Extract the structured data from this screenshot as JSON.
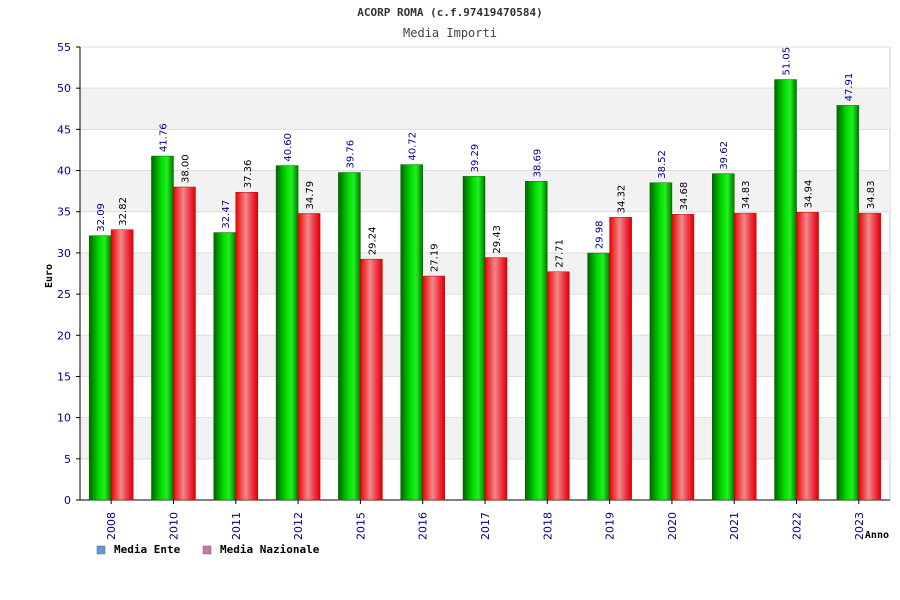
{
  "chart_data": {
    "type": "bar",
    "title": "ACORP ROMA (c.f.97419470584)",
    "subtitle": "Media Importi",
    "ylabel": "Euro",
    "xlabel": "Anno",
    "ylim": [
      0,
      55
    ],
    "yticks": [
      0,
      5,
      10,
      15,
      20,
      25,
      30,
      35,
      40,
      45,
      50,
      55
    ],
    "grid": true,
    "legend_position": "bottom-left",
    "categories": [
      "2008",
      "2010",
      "2011",
      "2012",
      "2015",
      "2016",
      "2017",
      "2018",
      "2019",
      "2020",
      "2021",
      "2022",
      "2023"
    ],
    "series": [
      {
        "name": "Media Ente",
        "color": "#00cc00",
        "legend_color": "#5b9bd5",
        "values": [
          32.09,
          41.76,
          32.47,
          40.6,
          39.76,
          40.72,
          39.29,
          38.69,
          29.98,
          38.52,
          39.62,
          51.05,
          47.91
        ],
        "labels": [
          "32.09",
          "41.76",
          "32.47",
          "40.60",
          "39.76",
          "40.72",
          "39.29",
          "38.69",
          "29.98",
          "38.52",
          "39.62",
          "51.05",
          "47.91"
        ]
      },
      {
        "name": "Media Nazionale",
        "color": "#ee0011",
        "legend_color": "#cc77aa",
        "values": [
          32.82,
          38.0,
          37.36,
          34.79,
          29.24,
          27.19,
          29.43,
          27.71,
          34.32,
          34.68,
          34.83,
          34.94,
          34.83
        ],
        "labels": [
          "32.82",
          "38.00",
          "37.36",
          "34.79",
          "29.24",
          "27.19",
          "29.43",
          "27.71",
          "34.32",
          "34.68",
          "34.83",
          "34.94",
          "34.83"
        ]
      }
    ]
  }
}
